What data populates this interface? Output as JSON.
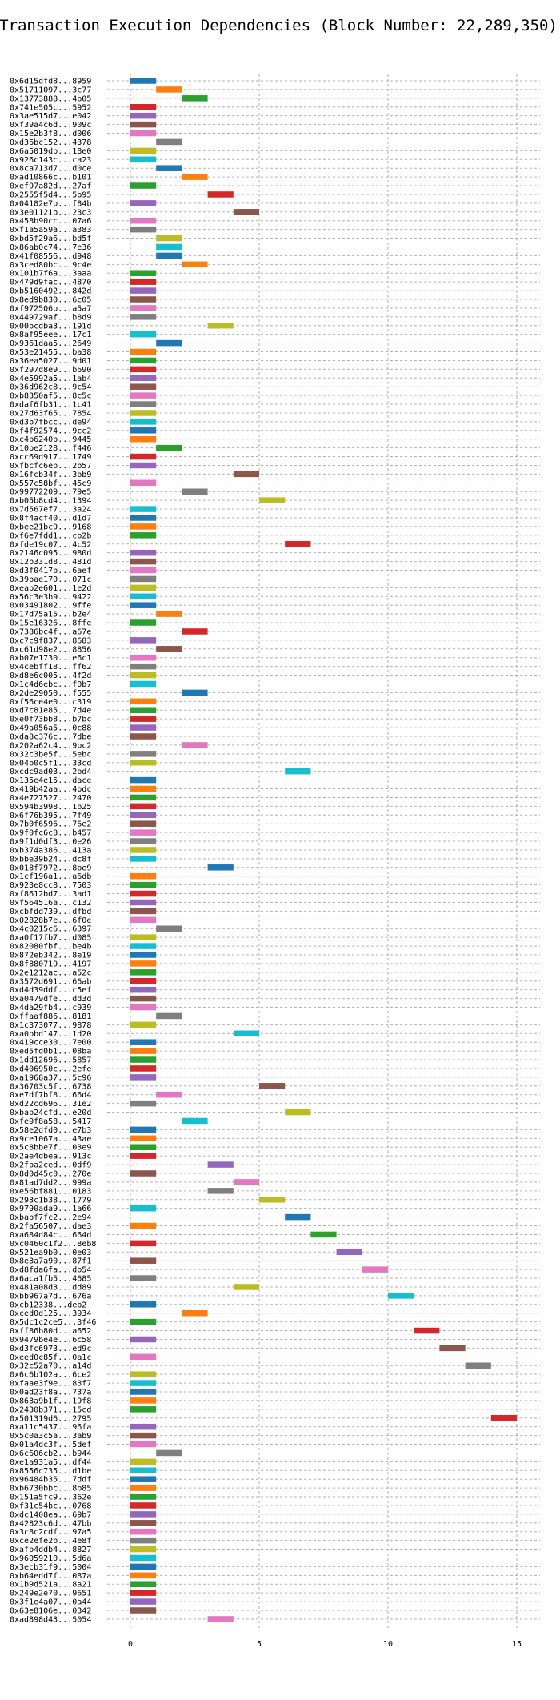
{
  "chart_data": {
    "type": "bar",
    "title": "Transaction Execution Dependencies (Block Number: 22,289,350)",
    "xlabel": "",
    "ylabel": "",
    "xlim": [
      -0.9,
      15.9
    ],
    "x_ticks": [
      0,
      5,
      10,
      15
    ],
    "grid": true,
    "palette": [
      "#1f77b4",
      "#ff7f0e",
      "#2ca02c",
      "#d62728",
      "#9467bd",
      "#8c564b",
      "#e377c2",
      "#7f7f7f",
      "#bcbd22",
      "#17becf"
    ],
    "transactions": [
      {
        "label": "0x6d15dfd8...8959",
        "start": 0,
        "end": 1
      },
      {
        "label": "0x51711097...3c77",
        "start": 1,
        "end": 2
      },
      {
        "label": "0x13773888...4b05",
        "start": 2,
        "end": 3
      },
      {
        "label": "0x741e505c...5952",
        "start": 0,
        "end": 1
      },
      {
        "label": "0x3ae515d7...e042",
        "start": 0,
        "end": 1
      },
      {
        "label": "0xf39a4c6d...909c",
        "start": 0,
        "end": 1
      },
      {
        "label": "0x15e2b3f8...d006",
        "start": 0,
        "end": 1
      },
      {
        "label": "0xd36bc152...4378",
        "start": 1,
        "end": 2
      },
      {
        "label": "0x6a5019db...18e0",
        "start": 0,
        "end": 1
      },
      {
        "label": "0x926c143c...ca23",
        "start": 0,
        "end": 1
      },
      {
        "label": "0x8ca713d7...d0ce",
        "start": 1,
        "end": 2
      },
      {
        "label": "0xad10866c...b101",
        "start": 2,
        "end": 3
      },
      {
        "label": "0xef97a82d...27af",
        "start": 0,
        "end": 1
      },
      {
        "label": "0x2555f5d4...5b95",
        "start": 3,
        "end": 4
      },
      {
        "label": "0x04182e7b...f84b",
        "start": 0,
        "end": 1
      },
      {
        "label": "0x3e01121b...23c3",
        "start": 4,
        "end": 5
      },
      {
        "label": "0x458b90cc...07a6",
        "start": 0,
        "end": 1
      },
      {
        "label": "0xf1a5a59a...a383",
        "start": 0,
        "end": 1
      },
      {
        "label": "0xbd5f29a6...bd5f",
        "start": 1,
        "end": 2
      },
      {
        "label": "0x86ab0c74...7e36",
        "start": 1,
        "end": 2
      },
      {
        "label": "0x41f08556...d948",
        "start": 1,
        "end": 2
      },
      {
        "label": "0x3ced80bc...9c4e",
        "start": 2,
        "end": 3
      },
      {
        "label": "0x101b7f6a...3aaa",
        "start": 0,
        "end": 1
      },
      {
        "label": "0x479d9fac...4870",
        "start": 0,
        "end": 1
      },
      {
        "label": "0xb5160492...842d",
        "start": 0,
        "end": 1
      },
      {
        "label": "0x8ed9b830...6c05",
        "start": 0,
        "end": 1
      },
      {
        "label": "0xf972506b...a5a7",
        "start": 0,
        "end": 1
      },
      {
        "label": "0x449729af...b8d9",
        "start": 0,
        "end": 1
      },
      {
        "label": "0x00bcdba3...191d",
        "start": 3,
        "end": 4
      },
      {
        "label": "0x8af95eee...17c1",
        "start": 0,
        "end": 1
      },
      {
        "label": "0x9361daa5...2649",
        "start": 1,
        "end": 2
      },
      {
        "label": "0x53e21455...ba38",
        "start": 0,
        "end": 1
      },
      {
        "label": "0x36ea5027...9d01",
        "start": 0,
        "end": 1
      },
      {
        "label": "0xf297d8e9...b690",
        "start": 0,
        "end": 1
      },
      {
        "label": "0x4e5992a5...1ab4",
        "start": 0,
        "end": 1
      },
      {
        "label": "0x36d962c8...9c54",
        "start": 0,
        "end": 1
      },
      {
        "label": "0xb8350af5...8c5c",
        "start": 0,
        "end": 1
      },
      {
        "label": "0xdaf6fb31...1c41",
        "start": 0,
        "end": 1
      },
      {
        "label": "0x27d63f65...7854",
        "start": 0,
        "end": 1
      },
      {
        "label": "0xd3b7fbcc...de94",
        "start": 0,
        "end": 1
      },
      {
        "label": "0xf4f92574...9cc2",
        "start": 0,
        "end": 1
      },
      {
        "label": "0xc4b6240b...9445",
        "start": 0,
        "end": 1
      },
      {
        "label": "0x10be2128...f446",
        "start": 1,
        "end": 2
      },
      {
        "label": "0xcc69d917...1749",
        "start": 0,
        "end": 1
      },
      {
        "label": "0xfbcfc6eb...2b57",
        "start": 0,
        "end": 1
      },
      {
        "label": "0x16fcb34f...3bb9",
        "start": 4,
        "end": 5
      },
      {
        "label": "0x557c58bf...45c9",
        "start": 0,
        "end": 1
      },
      {
        "label": "0x99772209...79e5",
        "start": 2,
        "end": 3
      },
      {
        "label": "0xb05b8cd4...1394",
        "start": 5,
        "end": 6
      },
      {
        "label": "0x7d567ef7...3a24",
        "start": 0,
        "end": 1
      },
      {
        "label": "0x8f4acf40...d1d7",
        "start": 0,
        "end": 1
      },
      {
        "label": "0xbee21bc9...9168",
        "start": 0,
        "end": 1
      },
      {
        "label": "0xf6e7fdd1...cb2b",
        "start": 0,
        "end": 1
      },
      {
        "label": "0xfde19c07...4c52",
        "start": 6,
        "end": 7
      },
      {
        "label": "0x2146c095...980d",
        "start": 0,
        "end": 1
      },
      {
        "label": "0x12b331d8...481d",
        "start": 0,
        "end": 1
      },
      {
        "label": "0xd3f0417b...6aef",
        "start": 0,
        "end": 1
      },
      {
        "label": "0x39bae170...071c",
        "start": 0,
        "end": 1
      },
      {
        "label": "0xeab2e601...1e2d",
        "start": 0,
        "end": 1
      },
      {
        "label": "0x56c3e3b9...9422",
        "start": 0,
        "end": 1
      },
      {
        "label": "0x03491802...9ffe",
        "start": 0,
        "end": 1
      },
      {
        "label": "0x17d75a15...b2e4",
        "start": 1,
        "end": 2
      },
      {
        "label": "0x15e16326...8ffe",
        "start": 0,
        "end": 1
      },
      {
        "label": "0x7386bc4f...a67e",
        "start": 2,
        "end": 3
      },
      {
        "label": "0xc7c9f837...8683",
        "start": 0,
        "end": 1
      },
      {
        "label": "0xc61d98e2...8856",
        "start": 1,
        "end": 2
      },
      {
        "label": "0xb07e1730...e6c1",
        "start": 0,
        "end": 1
      },
      {
        "label": "0x4cebff18...ff62",
        "start": 0,
        "end": 1
      },
      {
        "label": "0xd8e6c005...4f2d",
        "start": 0,
        "end": 1
      },
      {
        "label": "0x1c4d6ebc...f0b7",
        "start": 0,
        "end": 1
      },
      {
        "label": "0x2de29050...f555",
        "start": 2,
        "end": 3
      },
      {
        "label": "0xf56ce4e0...c319",
        "start": 0,
        "end": 1
      },
      {
        "label": "0xd7c81e85...7d4e",
        "start": 0,
        "end": 1
      },
      {
        "label": "0xe0f73bb8...b7bc",
        "start": 0,
        "end": 1
      },
      {
        "label": "0x49a056a5...0c88",
        "start": 0,
        "end": 1
      },
      {
        "label": "0xda8c376c...7dbe",
        "start": 0,
        "end": 1
      },
      {
        "label": "0x202a62c4...9bc2",
        "start": 2,
        "end": 3
      },
      {
        "label": "0x32c3be5f...5ebc",
        "start": 0,
        "end": 1
      },
      {
        "label": "0x04b0c5f1...33cd",
        "start": 0,
        "end": 1
      },
      {
        "label": "0xcdc9ad03...2bd4",
        "start": 6,
        "end": 7
      },
      {
        "label": "0x135e4e15...dace",
        "start": 0,
        "end": 1
      },
      {
        "label": "0x419b42aa...4bdc",
        "start": 0,
        "end": 1
      },
      {
        "label": "0x4e727527...2470",
        "start": 0,
        "end": 1
      },
      {
        "label": "0x594b3998...1b25",
        "start": 0,
        "end": 1
      },
      {
        "label": "0x6f76b395...7f49",
        "start": 0,
        "end": 1
      },
      {
        "label": "0x7b0f6596...76e2",
        "start": 0,
        "end": 1
      },
      {
        "label": "0x9f0fc6c8...b457",
        "start": 0,
        "end": 1
      },
      {
        "label": "0x9f1d0df3...0e26",
        "start": 0,
        "end": 1
      },
      {
        "label": "0xb374a386...413a",
        "start": 0,
        "end": 1
      },
      {
        "label": "0xbbe39b24...dc8f",
        "start": 0,
        "end": 1
      },
      {
        "label": "0x018f7972...8be9",
        "start": 3,
        "end": 4
      },
      {
        "label": "0x1cf196a1...a6db",
        "start": 0,
        "end": 1
      },
      {
        "label": "0x923e8cc8...7503",
        "start": 0,
        "end": 1
      },
      {
        "label": "0xf8612bd7...3ad1",
        "start": 0,
        "end": 1
      },
      {
        "label": "0xf564516a...c132",
        "start": 0,
        "end": 1
      },
      {
        "label": "0xcbfdd739...dfbd",
        "start": 0,
        "end": 1
      },
      {
        "label": "0x02828b7e...6f0e",
        "start": 0,
        "end": 1
      },
      {
        "label": "0x4c0215c6...6397",
        "start": 1,
        "end": 2
      },
      {
        "label": "0xa0f17fb7...d085",
        "start": 0,
        "end": 1
      },
      {
        "label": "0x82080fbf...be4b",
        "start": 0,
        "end": 1
      },
      {
        "label": "0x872eb342...8e19",
        "start": 0,
        "end": 1
      },
      {
        "label": "0x8f880719...4197",
        "start": 0,
        "end": 1
      },
      {
        "label": "0x2e1212ac...a52c",
        "start": 0,
        "end": 1
      },
      {
        "label": "0x3572d691...66ab",
        "start": 0,
        "end": 1
      },
      {
        "label": "0xd4d39ddf...c5ef",
        "start": 0,
        "end": 1
      },
      {
        "label": "0xa0479dfe...dd3d",
        "start": 0,
        "end": 1
      },
      {
        "label": "0x4da29fb4...c939",
        "start": 0,
        "end": 1
      },
      {
        "label": "0xffaaf886...8181",
        "start": 1,
        "end": 2
      },
      {
        "label": "0x1c373077...9878",
        "start": 0,
        "end": 1
      },
      {
        "label": "0xa0bbd147...1d20",
        "start": 4,
        "end": 5
      },
      {
        "label": "0x419cce30...7e00",
        "start": 0,
        "end": 1
      },
      {
        "label": "0xed5fd0b1...08ba",
        "start": 0,
        "end": 1
      },
      {
        "label": "0x1dd12696...5857",
        "start": 0,
        "end": 1
      },
      {
        "label": "0xd406950c...2efe",
        "start": 0,
        "end": 1
      },
      {
        "label": "0xa1968a37...5c96",
        "start": 0,
        "end": 1
      },
      {
        "label": "0x36703c5f...6738",
        "start": 5,
        "end": 6
      },
      {
        "label": "0xe7df7bf8...66d4",
        "start": 1,
        "end": 2
      },
      {
        "label": "0xd22cd696...31e2",
        "start": 0,
        "end": 1
      },
      {
        "label": "0xbab24cfd...e20d",
        "start": 6,
        "end": 7
      },
      {
        "label": "0xfe9f8a58...5417",
        "start": 2,
        "end": 3
      },
      {
        "label": "0x58e2dfd0...e7b3",
        "start": 0,
        "end": 1
      },
      {
        "label": "0x9ce1067a...43ae",
        "start": 0,
        "end": 1
      },
      {
        "label": "0x5c8bbe7f...03e9",
        "start": 0,
        "end": 1
      },
      {
        "label": "0x2ae4dbea...913c",
        "start": 0,
        "end": 1
      },
      {
        "label": "0x2fba2ced...0df9",
        "start": 3,
        "end": 4
      },
      {
        "label": "0x8d0d45c0...270e",
        "start": 0,
        "end": 1
      },
      {
        "label": "0x81ad7dd2...999a",
        "start": 4,
        "end": 5
      },
      {
        "label": "0xe56bf881...0183",
        "start": 3,
        "end": 4
      },
      {
        "label": "0x293c1b38...1779",
        "start": 5,
        "end": 6
      },
      {
        "label": "0x9790ada9...1a66",
        "start": 0,
        "end": 1
      },
      {
        "label": "0xbabf7fc2...2e94",
        "start": 6,
        "end": 7
      },
      {
        "label": "0x2fa56507...dae3",
        "start": 0,
        "end": 1
      },
      {
        "label": "0xa684d84c...664d",
        "start": 7,
        "end": 8
      },
      {
        "label": "0xc0460c1f2...8eb8",
        "start": 0,
        "end": 1
      },
      {
        "label": "0x521ea9b0...0e03",
        "start": 8,
        "end": 9
      },
      {
        "label": "0x8e3a7a90...87f1",
        "start": 0,
        "end": 1
      },
      {
        "label": "0xd8fda6fa...db54",
        "start": 9,
        "end": 10
      },
      {
        "label": "0x6aca1fb5...4685",
        "start": 0,
        "end": 1
      },
      {
        "label": "0x481a08d3...dd89",
        "start": 4,
        "end": 5
      },
      {
        "label": "0xbb967a7d...676a",
        "start": 10,
        "end": 11
      },
      {
        "label": "0xcb12338...deb2",
        "start": 0,
        "end": 1
      },
      {
        "label": "0xced0d125...3934",
        "start": 2,
        "end": 3
      },
      {
        "label": "0x5dc1c2ce5...3f46",
        "start": 0,
        "end": 1
      },
      {
        "label": "0xff86b80d...a652",
        "start": 11,
        "end": 12
      },
      {
        "label": "0x9479be4e...6c58",
        "start": 0,
        "end": 1
      },
      {
        "label": "0xd3fc6973...ed9c",
        "start": 12,
        "end": 13
      },
      {
        "label": "0xeed0c85f...0a1c",
        "start": 0,
        "end": 1
      },
      {
        "label": "0x32c52a70...a14d",
        "start": 13,
        "end": 14
      },
      {
        "label": "0x6c6b102a...6ce2",
        "start": 0,
        "end": 1
      },
      {
        "label": "0xfaae3f9e...83f7",
        "start": 0,
        "end": 1
      },
      {
        "label": "0x0ad23f8a...737a",
        "start": 0,
        "end": 1
      },
      {
        "label": "0x863a9b1f...19f8",
        "start": 0,
        "end": 1
      },
      {
        "label": "0x2430b371...15cd",
        "start": 0,
        "end": 1
      },
      {
        "label": "0x501319d6...2795",
        "start": 14,
        "end": 15
      },
      {
        "label": "0xa11c5437...96fa",
        "start": 0,
        "end": 1
      },
      {
        "label": "0x5c0a3c5a...3ab9",
        "start": 0,
        "end": 1
      },
      {
        "label": "0x01a4dc3f...5def",
        "start": 0,
        "end": 1
      },
      {
        "label": "0x6c606cb2...b944",
        "start": 1,
        "end": 2
      },
      {
        "label": "0xe1a931a5...df44",
        "start": 0,
        "end": 1
      },
      {
        "label": "0x8556c735...d1be",
        "start": 0,
        "end": 1
      },
      {
        "label": "0x96484b35...7ddf",
        "start": 0,
        "end": 1
      },
      {
        "label": "0xb6730bbc...8b85",
        "start": 0,
        "end": 1
      },
      {
        "label": "0x151a5fc9...362e",
        "start": 0,
        "end": 1
      },
      {
        "label": "0xf31c54bc...0768",
        "start": 0,
        "end": 1
      },
      {
        "label": "0xdc1408ea...69b7",
        "start": 0,
        "end": 1
      },
      {
        "label": "0x42823c6d...47bb",
        "start": 0,
        "end": 1
      },
      {
        "label": "0x3c8c2cdf...97a5",
        "start": 0,
        "end": 1
      },
      {
        "label": "0xce2efe2b...4e8f",
        "start": 0,
        "end": 1
      },
      {
        "label": "0xafb4ddb4...8827",
        "start": 0,
        "end": 1
      },
      {
        "label": "0x96059210...5d6a",
        "start": 0,
        "end": 1
      },
      {
        "label": "0x3ecb31f9...5004",
        "start": 0,
        "end": 1
      },
      {
        "label": "0xb64edd7f...087a",
        "start": 0,
        "end": 1
      },
      {
        "label": "0x1b9d521a...8a21",
        "start": 0,
        "end": 1
      },
      {
        "label": "0x249e2e70...9651",
        "start": 0,
        "end": 1
      },
      {
        "label": "0x3f1e4a07...0a44",
        "start": 0,
        "end": 1
      },
      {
        "label": "0x63e8106e...0342",
        "start": 0,
        "end": 1
      },
      {
        "label": "0xad898d43...5054",
        "start": 3,
        "end": 4
      }
    ]
  }
}
